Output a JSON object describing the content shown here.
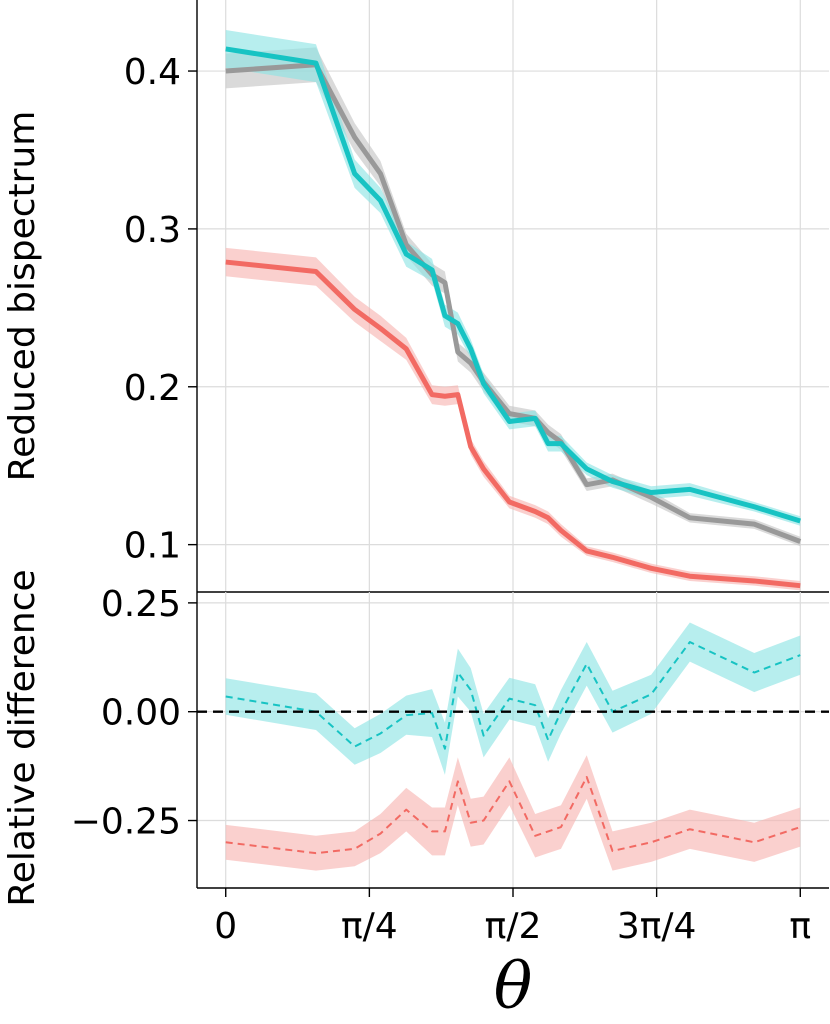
{
  "chart_data": [
    {
      "type": "line",
      "panel": "top",
      "ylabel": "Reduced bispectrum",
      "ylim": [
        0.07,
        0.445
      ],
      "yticks": [
        "0.1",
        "0.2",
        "0.3",
        "0.4"
      ],
      "ytick_values": [
        0.1,
        0.2,
        0.3,
        0.4
      ],
      "grid": true,
      "x": [
        0,
        0.1571,
        0.2244,
        0.2693,
        0.3142,
        0.3591,
        0.3815,
        0.404,
        0.4264,
        0.4488,
        0.4937,
        0.5386,
        0.5611,
        0.5835,
        0.6283,
        0.6732,
        0.7405,
        0.8078,
        0.9199,
        1.0
      ],
      "series": [
        {
          "name": "gray",
          "color": "#999999",
          "band_color": "#c4c4c4",
          "values": [
            0.4,
            0.404,
            0.358,
            0.335,
            0.29,
            0.271,
            0.266,
            0.222,
            0.215,
            0.203,
            0.183,
            0.18,
            0.171,
            0.165,
            0.138,
            0.141,
            0.13,
            0.117,
            0.113,
            0.102
          ],
          "band": [
            0.011,
            0.011,
            0.009,
            0.008,
            0.007,
            0.007,
            0.007,
            0.006,
            0.006,
            0.006,
            0.005,
            0.005,
            0.005,
            0.005,
            0.004,
            0.004,
            0.004,
            0.003,
            0.003,
            0.003
          ]
        },
        {
          "name": "cyan",
          "color": "#17c3c3",
          "band_color": "#8be4e4",
          "values": [
            0.414,
            0.405,
            0.335,
            0.318,
            0.284,
            0.274,
            0.245,
            0.24,
            0.224,
            0.202,
            0.178,
            0.18,
            0.164,
            0.164,
            0.148,
            0.14,
            0.133,
            0.135,
            0.124,
            0.115
          ],
          "band": [
            0.012,
            0.012,
            0.009,
            0.008,
            0.008,
            0.007,
            0.007,
            0.007,
            0.006,
            0.006,
            0.005,
            0.005,
            0.005,
            0.005,
            0.004,
            0.004,
            0.004,
            0.004,
            0.003,
            0.003
          ]
        },
        {
          "name": "red",
          "color": "#f26a63",
          "band_color": "#f7b3b0",
          "values": [
            0.279,
            0.273,
            0.249,
            0.237,
            0.224,
            0.195,
            0.194,
            0.195,
            0.162,
            0.148,
            0.127,
            0.121,
            0.117,
            0.109,
            0.096,
            0.092,
            0.085,
            0.08,
            0.077,
            0.074
          ],
          "band": [
            0.009,
            0.009,
            0.008,
            0.008,
            0.007,
            0.006,
            0.006,
            0.006,
            0.005,
            0.005,
            0.004,
            0.004,
            0.004,
            0.004,
            0.003,
            0.003,
            0.003,
            0.003,
            0.003,
            0.003
          ]
        }
      ]
    },
    {
      "type": "line",
      "panel": "bottom",
      "xlabel": "θ",
      "ylabel": "Relative difference",
      "ylim": [
        -0.405,
        0.275
      ],
      "yticks": [
        "0.25",
        "0.00",
        "−0.25"
      ],
      "ytick_values": [
        0.25,
        0.0,
        -0.25
      ],
      "xticks": [
        "0",
        "π/4",
        "π/2",
        "3π/4",
        "π"
      ],
      "xtick_values": [
        0,
        0.25,
        0.5,
        0.75,
        1.0
      ],
      "xrange": [
        -0.05,
        1.05
      ],
      "grid": true,
      "reference_line": 0.0,
      "x": [
        0,
        0.1571,
        0.2244,
        0.2693,
        0.3142,
        0.3591,
        0.3815,
        0.404,
        0.4264,
        0.4488,
        0.4937,
        0.5386,
        0.5611,
        0.5835,
        0.6283,
        0.6732,
        0.7405,
        0.8078,
        0.9199,
        1.0
      ],
      "series": [
        {
          "name": "cyan",
          "color": "#17c3c3",
          "band_color": "#8be4e4",
          "values": [
            0.035,
            0.0,
            -0.08,
            -0.05,
            -0.008,
            -0.003,
            -0.085,
            0.09,
            0.05,
            -0.055,
            0.03,
            0.015,
            -0.065,
            0.0,
            0.11,
            0.0,
            0.04,
            0.16,
            0.09,
            0.13
          ],
          "band": [
            0.042,
            0.042,
            0.042,
            0.045,
            0.045,
            0.055,
            0.06,
            0.055,
            0.05,
            0.05,
            0.048,
            0.048,
            0.05,
            0.05,
            0.05,
            0.048,
            0.045,
            0.045,
            0.045,
            0.045
          ]
        },
        {
          "name": "red",
          "color": "#f26a63",
          "band_color": "#f7b3b0",
          "values": [
            -0.3,
            -0.325,
            -0.315,
            -0.28,
            -0.225,
            -0.275,
            -0.275,
            -0.16,
            -0.255,
            -0.25,
            -0.16,
            -0.285,
            -0.275,
            -0.265,
            -0.15,
            -0.32,
            -0.3,
            -0.27,
            -0.3,
            -0.265
          ],
          "band": [
            0.04,
            0.04,
            0.04,
            0.045,
            0.05,
            0.055,
            0.055,
            0.055,
            0.055,
            0.055,
            0.055,
            0.05,
            0.05,
            0.05,
            0.05,
            0.045,
            0.045,
            0.045,
            0.045,
            0.045
          ]
        }
      ]
    }
  ]
}
